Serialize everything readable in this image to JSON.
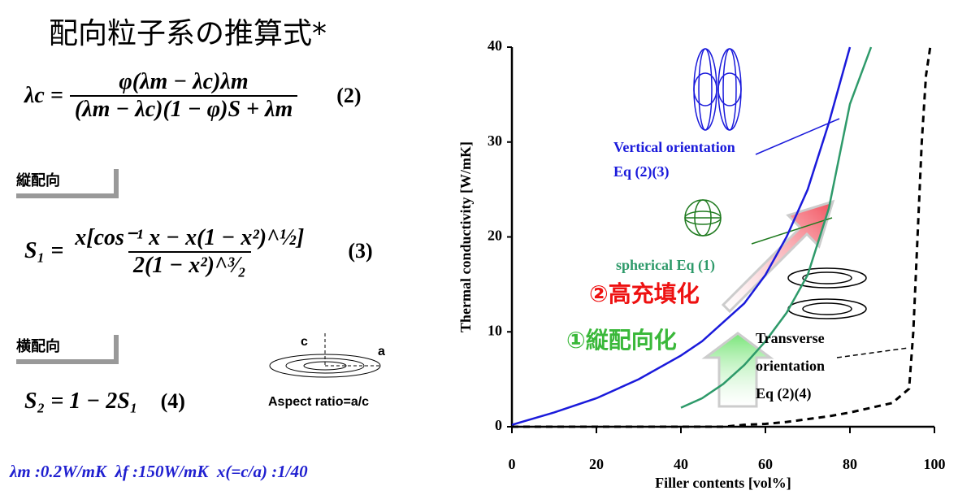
{
  "slide": {
    "title": "配向粒子系の推算式*",
    "eq2": {
      "lhs": "λc =",
      "numerator": "φ(λm − λc)λm",
      "denominator": "(λm − λc)(1 − φ)S + λm",
      "number": "(2)"
    },
    "tab1": "縦配向",
    "eq3": {
      "lhs": "S₁ =",
      "numerator": "x[cos⁻¹ x − x(1 − x²)^½]",
      "denominator": "2(1 − x²)^³⁄₂",
      "number": "(3)"
    },
    "tab2": "横配向",
    "eq4": {
      "text": "S₂ = 1 − 2S₁",
      "number": "(4)"
    },
    "disk": {
      "c": "c",
      "a": "a",
      "caption": "Aspect ratio=a/c"
    },
    "params": "λm :0.2W/mK  λf :150W/mK  x(=c/a) :1/40"
  },
  "chart_data": {
    "type": "line",
    "x_label": "Filler contents [vol%]",
    "y_label": "Thermal conductivity [W/mK]",
    "x": [
      0,
      10,
      20,
      30,
      40,
      45,
      50,
      55,
      60,
      65,
      70,
      75,
      80,
      85,
      90,
      94,
      95,
      96,
      97,
      98,
      99
    ],
    "series": [
      {
        "color": "#1a1adb",
        "dash": false,
        "values": [
          0.2,
          1.5,
          3,
          5,
          7.5,
          9,
          11,
          13,
          16,
          20,
          25,
          32,
          40,
          null,
          null,
          null,
          null,
          null,
          null,
          null,
          null
        ]
      },
      {
        "color": "#2e9a6a",
        "dash": false,
        "values": [
          null,
          null,
          null,
          null,
          2,
          3,
          4.5,
          6.5,
          9,
          12,
          16,
          23,
          34,
          40,
          null,
          null,
          null,
          null,
          null,
          null,
          null
        ]
      },
      {
        "color": "#000000",
        "dash": true,
        "values": [
          0,
          0,
          0,
          0,
          0,
          0,
          0,
          0.2,
          0.3,
          0.5,
          0.8,
          1.1,
          1.5,
          2,
          2.5,
          4,
          10,
          20,
          30,
          37,
          40
        ]
      }
    ],
    "xlim": [
      0,
      100
    ],
    "xticks": [
      0,
      20,
      40,
      60,
      80,
      100
    ],
    "ylim": [
      0,
      40
    ],
    "yticks": [
      0,
      10,
      20,
      30,
      40
    ],
    "annotations": {
      "vertical": [
        "Vertical orientation",
        "Eq (2)(3)"
      ],
      "spherical": "spherical Eq (1)",
      "transverse": [
        "Transverse",
        "orientation",
        "Eq (2)(4)"
      ],
      "high_fill": "②高充填化",
      "vertical_orient": "①縦配向化"
    }
  }
}
